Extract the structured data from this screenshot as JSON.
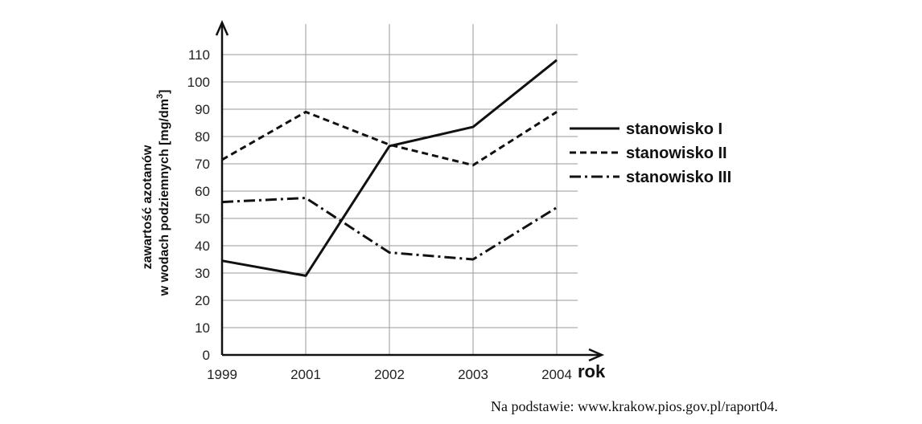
{
  "chart_data": {
    "type": "line",
    "x": [
      "1999",
      "2001",
      "2002",
      "2003",
      "2004"
    ],
    "xlabel": "rok",
    "ylabel_line1": "zawartość azotanów",
    "ylabel_line2": "w wodach podziemnych [mg/dm",
    "ylabel_sup": "3",
    "ylabel_close": "]",
    "ylim": [
      0,
      110
    ],
    "yticks": [
      "0",
      "10",
      "20",
      "30",
      "40",
      "50",
      "60",
      "70",
      "80",
      "90",
      "100",
      "110"
    ],
    "grid": true,
    "legend_position": "right",
    "series": [
      {
        "name": "stanowisko I",
        "style": "solid",
        "values": [
          34.5,
          29,
          76.5,
          83.5,
          108
        ]
      },
      {
        "name": "stanowisko II",
        "style": "dashed",
        "values": [
          71.5,
          89,
          77,
          69.5,
          89
        ]
      },
      {
        "name": "stanowisko III",
        "style": "dashdot",
        "values": [
          56,
          57.5,
          37.5,
          35,
          54
        ]
      }
    ]
  },
  "source_note": "Na podstawie: www.krakow.pios.gov.pl/raport04."
}
